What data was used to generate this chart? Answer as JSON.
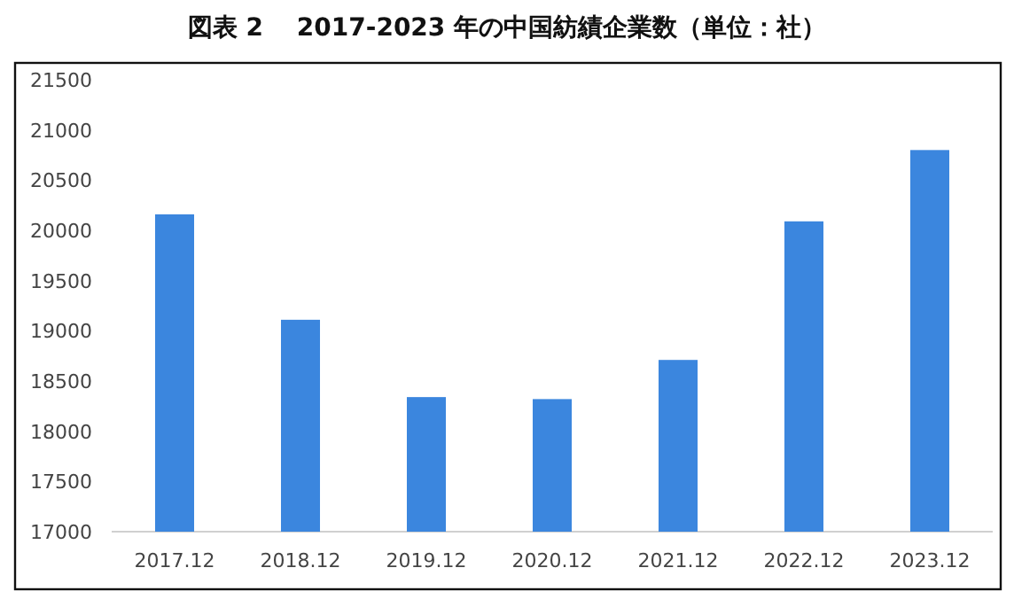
{
  "chart_data": {
    "type": "bar",
    "title": "図表 2　 2017-2023 年の中国紡績企業数（単位：社）",
    "categories": [
      "2017.12",
      "2018.12",
      "2019.12",
      "2020.12",
      "2021.12",
      "2022.12",
      "2023.12"
    ],
    "values": [
      20160,
      19110,
      18340,
      18320,
      18710,
      20090,
      20800
    ],
    "color": "#3b86de",
    "ylim": [
      17000,
      21500
    ],
    "yticks": [
      17000,
      17500,
      18000,
      18500,
      19000,
      19500,
      20000,
      20500,
      21000,
      21500
    ],
    "grid": false
  }
}
